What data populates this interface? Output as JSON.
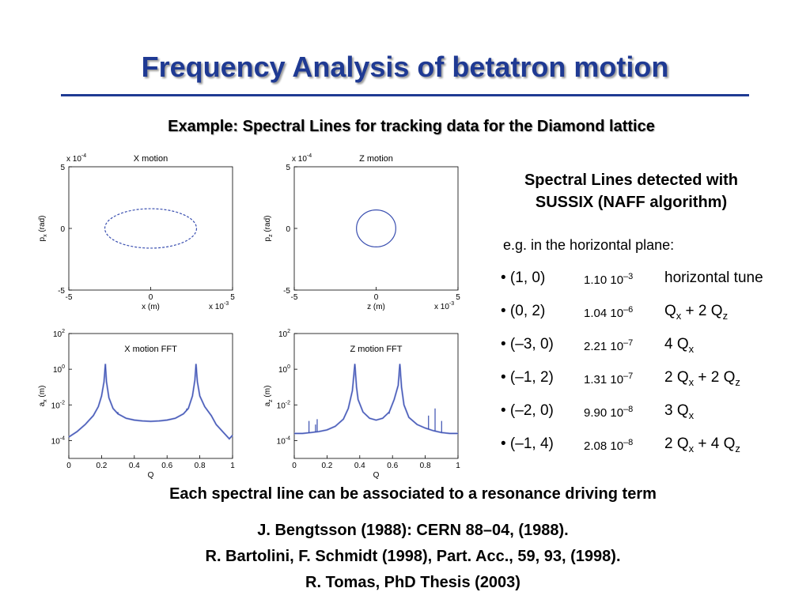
{
  "slide": {
    "title": "Frequency Analysis of betatron motion",
    "subtitle": "Example: Spectral Lines for tracking data for the Diamond lattice",
    "right_heading_line1": "Spectral Lines detected with",
    "right_heading_line2": "SUSSIX (NAFF algorithm)",
    "plane_label": "e.g. in the horizontal plane:",
    "lines": [
      {
        "mode": "• (1, 0)",
        "amp_mantissa": "1.10 10",
        "amp_exp": "–3",
        "desc_parts": [
          "horizontal tune"
        ]
      },
      {
        "mode": "• (0, 2)",
        "amp_mantissa": "1.04 10",
        "amp_exp": "–6",
        "desc_parts": [
          "Q",
          "x",
          " + 2 Q",
          "z"
        ]
      },
      {
        "mode": "• (–3, 0)",
        "amp_mantissa": "2.21 10",
        "amp_exp": "–7",
        "desc_parts": [
          "4 Q",
          "x"
        ]
      },
      {
        "mode": "• (–1, 2)",
        "amp_mantissa": "1.31 10",
        "amp_exp": "–7",
        "desc_parts": [
          "2 Q",
          "x",
          " + 2 Q",
          "z"
        ]
      },
      {
        "mode": "• (–2, 0)",
        "amp_mantissa": "9.90 10",
        "amp_exp": "–8",
        "desc_parts": [
          "3 Q",
          "x"
        ]
      },
      {
        "mode": "• (–1, 4)",
        "amp_mantissa": "2.08 10",
        "amp_exp": "–8",
        "desc_parts": [
          "2 Q",
          "x",
          " + 4 Q",
          "z"
        ]
      }
    ],
    "driving_term": "Each spectral line can be associated to a resonance driving term",
    "references": [
      "J. Bengtsson (1988): CERN 88–04, (1988).",
      "R. Bartolini, F. Schmidt (1998), Part. Acc., 59, 93, (1998).",
      "R. Tomas, PhD Thesis (2003)"
    ]
  },
  "colors": {
    "title": "#1f3a93",
    "curve": "#3a4fb0",
    "curve_light": "#8e9ad8"
  },
  "chart_data": [
    {
      "type": "scatter",
      "title": "X motion",
      "xlabel": "x (m)",
      "ylabel_main": "p",
      "ylabel_sub": "x",
      "ylabel_unit": " (rad)",
      "x_exponent": "x 10",
      "x_exponent_power": "-3",
      "y_exponent": "x 10",
      "y_exponent_power": "-4",
      "xlim": [
        -5,
        5
      ],
      "ylim": [
        -5,
        5
      ],
      "x_ticks": [
        "-5",
        "0",
        "5"
      ],
      "y_ticks": [
        "5",
        "0",
        "-5"
      ],
      "ellipse": {
        "cx": 0,
        "cy": 0,
        "rx": 2.8,
        "ry": 1.6,
        "style": "dashed"
      }
    },
    {
      "type": "scatter",
      "title": "Z motion",
      "xlabel": "z (m)",
      "ylabel_main": "p",
      "ylabel_sub": "z",
      "ylabel_unit": " (rad)",
      "x_exponent": "x 10",
      "x_exponent_power": "-3",
      "y_exponent": "x 10",
      "y_exponent_power": "-4",
      "xlim": [
        -5,
        5
      ],
      "ylim": [
        -5,
        5
      ],
      "x_ticks": [
        "-5",
        "0",
        "5"
      ],
      "y_ticks": [
        "5",
        "0",
        "-5"
      ],
      "ellipse": {
        "cx": 0,
        "cy": 0,
        "rx": 1.2,
        "ry": 1.5,
        "style": "solid"
      }
    },
    {
      "type": "line",
      "title": "X motion FFT",
      "xlabel": "Q",
      "ylabel_main": "a",
      "ylabel_sub": "x",
      "ylabel_unit": " (m)",
      "xlim": [
        0,
        1
      ],
      "ylog": true,
      "ylim_exp": [
        -5,
        2
      ],
      "x_ticks": [
        "0",
        "0.2",
        "0.4",
        "0.6",
        "0.8",
        "1"
      ],
      "y_ticks": [
        {
          "base": "10",
          "exp": "2"
        },
        {
          "base": "10",
          "exp": "0"
        },
        {
          "base": "10",
          "exp": "-2"
        },
        {
          "base": "10",
          "exp": "-4"
        }
      ],
      "x": [
        0,
        0.05,
        0.1,
        0.15,
        0.18,
        0.2,
        0.215,
        0.223,
        0.23,
        0.245,
        0.27,
        0.3,
        0.35,
        0.4,
        0.45,
        0.5,
        0.55,
        0.6,
        0.65,
        0.7,
        0.73,
        0.755,
        0.77,
        0.777,
        0.785,
        0.8,
        0.83,
        0.87,
        0.9,
        0.95,
        0.98,
        1
      ],
      "y": [
        -3.8,
        -3.5,
        -3.1,
        -2.6,
        -2.1,
        -1.5,
        -0.7,
        0.3,
        -0.7,
        -1.6,
        -2.2,
        -2.5,
        -2.75,
        -2.85,
        -2.9,
        -2.92,
        -2.9,
        -2.85,
        -2.75,
        -2.5,
        -2.2,
        -1.5,
        -0.6,
        0.3,
        -0.7,
        -1.5,
        -2.1,
        -2.6,
        -3.1,
        -3.6,
        -3.9,
        -3.7
      ],
      "spikes": [
        {
          "x": 0.3,
          "y": -2.4
        },
        {
          "x": 0.72,
          "y": -2.2
        }
      ]
    },
    {
      "type": "line",
      "title": "Z motion FFT",
      "xlabel": "Q",
      "ylabel_main": "a",
      "ylabel_sub": "z",
      "ylabel_unit": " (m)",
      "xlim": [
        0,
        1
      ],
      "ylog": true,
      "ylim_exp": [
        -5,
        2
      ],
      "x_ticks": [
        "0",
        "0.2",
        "0.4",
        "0.6",
        "0.8",
        "1"
      ],
      "y_ticks": [
        {
          "base": "10",
          "exp": "2"
        },
        {
          "base": "10",
          "exp": "0"
        },
        {
          "base": "10",
          "exp": "-2"
        },
        {
          "base": "10",
          "exp": "-4"
        }
      ],
      "x": [
        0,
        0.05,
        0.1,
        0.15,
        0.2,
        0.25,
        0.3,
        0.33,
        0.355,
        0.37,
        0.38,
        0.39,
        0.42,
        0.46,
        0.5,
        0.54,
        0.58,
        0.61,
        0.635,
        0.645,
        0.655,
        0.67,
        0.7,
        0.75,
        0.8,
        0.85,
        0.9,
        0.95,
        1
      ],
      "y": [
        -3.6,
        -3.6,
        -3.55,
        -3.5,
        -3.4,
        -3.2,
        -2.8,
        -2.2,
        -1.2,
        0.3,
        -1.0,
        -1.7,
        -2.4,
        -2.75,
        -2.85,
        -2.75,
        -2.4,
        -1.7,
        -0.9,
        0.3,
        -1.0,
        -2.0,
        -2.7,
        -3.1,
        -3.3,
        -3.45,
        -3.55,
        -3.6,
        -3.6
      ],
      "spikes": [
        {
          "x": 0.09,
          "y": -2.9
        },
        {
          "x": 0.13,
          "y": -3.1
        },
        {
          "x": 0.14,
          "y": -2.8
        },
        {
          "x": 0.58,
          "y": -2.5
        },
        {
          "x": 0.82,
          "y": -2.6
        },
        {
          "x": 0.86,
          "y": -2.2
        },
        {
          "x": 0.9,
          "y": -2.9
        }
      ]
    }
  ]
}
